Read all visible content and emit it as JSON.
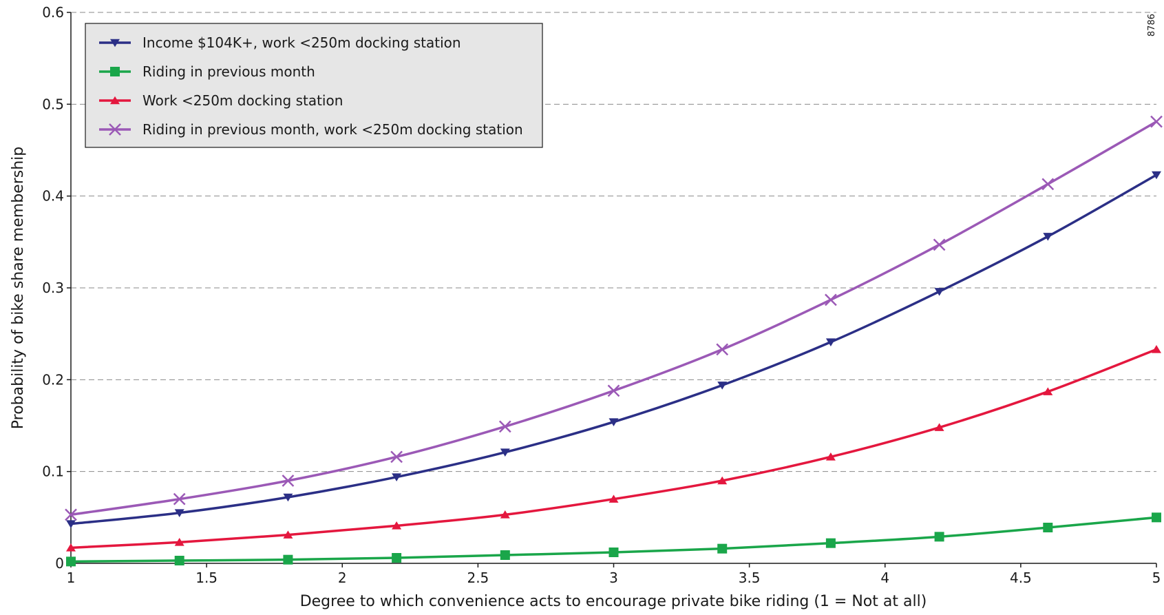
{
  "figure_code": "8786",
  "chart_data": {
    "type": "line",
    "title": "",
    "xlabel": "Degree to which convenience acts to encourage private bike riding (1 = Not at all)",
    "ylabel": "Probability of bike share membership",
    "xlim": [
      1,
      5
    ],
    "ylim": [
      0,
      0.6
    ],
    "x_ticks": [
      "1",
      "1.5",
      "2",
      "2.5",
      "3",
      "3.5",
      "4",
      "4.5",
      "5"
    ],
    "y_ticks": [
      "0",
      "0.1",
      "0.2",
      "0.3",
      "0.4",
      "0.5",
      "0.6"
    ],
    "grid": "horizontal dashed",
    "legend_position": "top-left",
    "x": [
      1,
      1.4,
      1.8,
      2.2,
      2.6,
      3,
      3.4,
      3.8,
      4.2,
      4.6,
      5
    ],
    "series": [
      {
        "name": "Income $104K+, work <250m docking station",
        "color": "#2b2f86",
        "marker": "triangle-down",
        "values": [
          0.043,
          0.055,
          0.072,
          0.094,
          0.121,
          0.154,
          0.194,
          0.241,
          0.296,
          0.356,
          0.423
        ]
      },
      {
        "name": "Riding in previous month",
        "color": "#1aa64a",
        "marker": "square",
        "values": [
          0.002,
          0.003,
          0.004,
          0.006,
          0.009,
          0.012,
          0.016,
          0.022,
          0.029,
          0.039,
          0.05
        ]
      },
      {
        "name": "Work <250m docking station",
        "color": "#e4173e",
        "marker": "triangle-up",
        "values": [
          0.017,
          0.023,
          0.031,
          0.041,
          0.053,
          0.07,
          0.09,
          0.116,
          0.148,
          0.187,
          0.233
        ]
      },
      {
        "name": "Riding in previous month, work <250m docking station",
        "color": "#9b59b6",
        "marker": "x",
        "values": [
          0.053,
          0.07,
          0.09,
          0.116,
          0.149,
          0.188,
          0.233,
          0.287,
          0.347,
          0.413,
          0.481
        ]
      }
    ]
  }
}
